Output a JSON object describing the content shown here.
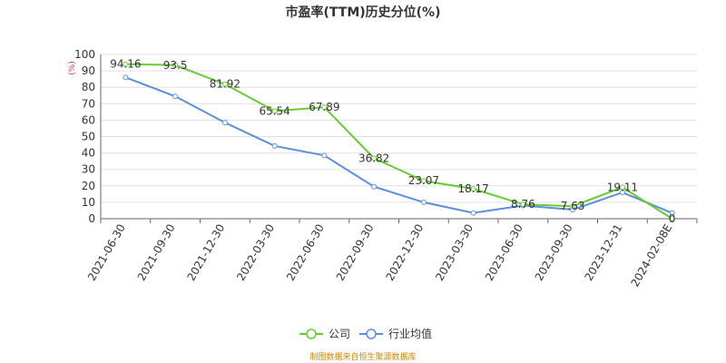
{
  "chart_data": {
    "type": "line",
    "title": "市盈率(TTM)历史分位(%)",
    "y_unit": "(%)",
    "categories": [
      "2021-06-30",
      "2021-09-30",
      "2021-12-30",
      "2022-03-30",
      "2022-06-30",
      "2022-09-30",
      "2022-12-30",
      "2023-03-30",
      "2023-06-30",
      "2023-09-30",
      "2023-12-31",
      "2024-02-08E"
    ],
    "ylim": [
      0,
      100
    ],
    "yticks": [
      0,
      10,
      20,
      30,
      40,
      50,
      60,
      70,
      80,
      90,
      100
    ],
    "grid": true,
    "legend_position": "bottom",
    "series": [
      {
        "name": "公司",
        "color": "#66cc33",
        "values": [
          94.16,
          93.5,
          81.92,
          65.54,
          67.89,
          36.82,
          23.07,
          18.17,
          8.76,
          7.63,
          19.11,
          0
        ],
        "labels": [
          "94.16",
          "93.5",
          "81.92",
          "65.54",
          "67.89",
          "36.82",
          "23.07",
          "18.17",
          "8.76",
          "7.63",
          "19.11",
          "0"
        ]
      },
      {
        "name": "行业均值",
        "color": "#5b8fdc",
        "values": [
          86,
          74.5,
          58.5,
          44.3,
          38.5,
          19.5,
          10,
          3.5,
          8,
          5.5,
          16,
          3.5
        ]
      }
    ],
    "source": "制图数据来自恒生聚源数据库"
  }
}
